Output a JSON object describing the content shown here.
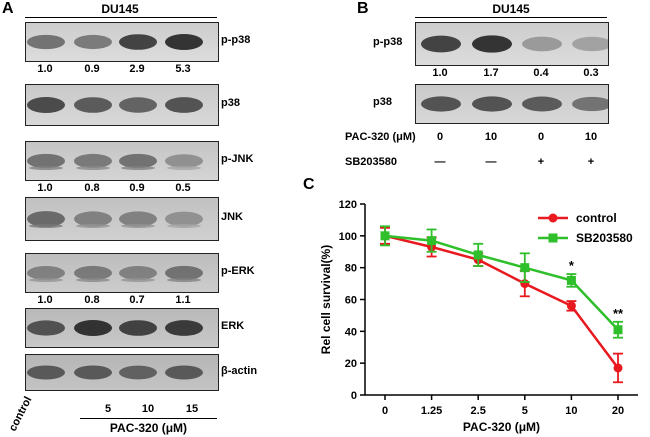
{
  "panel_a": {
    "letter": "A",
    "cell_line": "DU145",
    "blots": [
      {
        "label": "p-p38",
        "quant": [
          "1.0",
          "0.9",
          "2.9",
          "5.3"
        ],
        "band_intensity": [
          0.55,
          0.5,
          0.85,
          0.95
        ]
      },
      {
        "label": "p38",
        "quant": [],
        "band_intensity": [
          0.8,
          0.7,
          0.65,
          0.75
        ]
      },
      {
        "label": "p-JNK",
        "quant": [
          "1.0",
          "0.8",
          "0.9",
          "0.5"
        ],
        "band_intensity": [
          0.55,
          0.5,
          0.55,
          0.35
        ]
      },
      {
        "label": "JNK",
        "quant": [],
        "band_intensity": [
          0.6,
          0.45,
          0.45,
          0.35
        ]
      },
      {
        "label": "p-ERK",
        "quant": [
          "1.0",
          "0.8",
          "0.7",
          "1.1"
        ],
        "band_intensity": [
          0.45,
          0.5,
          0.45,
          0.55
        ]
      },
      {
        "label": "ERK",
        "quant": [],
        "band_intensity": [
          0.75,
          0.95,
          0.85,
          0.9
        ]
      },
      {
        "label": "β-actin",
        "quant": [],
        "band_intensity": [
          0.7,
          0.7,
          0.65,
          0.7
        ]
      }
    ],
    "lane_labels": [
      "control",
      "5",
      "10",
      "15"
    ],
    "treatment_label": "PAC-320 (μM)"
  },
  "panel_b": {
    "letter": "B",
    "cell_line": "DU145",
    "blots": [
      {
        "label": "p-p38",
        "quant": [
          "1.0",
          "1.7",
          "0.4",
          "0.3"
        ],
        "band_intensity": [
          0.85,
          0.95,
          0.3,
          0.25
        ]
      },
      {
        "label": "p38",
        "quant": [],
        "band_intensity": [
          0.75,
          0.75,
          0.7,
          0.55
        ]
      }
    ],
    "conditions": [
      {
        "label": "PAC-320 (μM)",
        "values": [
          "0",
          "10",
          "0",
          "10"
        ]
      },
      {
        "label": "SB203580",
        "values": [
          "—",
          "—",
          "+",
          "+"
        ]
      }
    ]
  },
  "panel_c": {
    "letter": "C",
    "chart_data": {
      "type": "line",
      "xlabel": "PAC-320 (μM)",
      "ylabel": "Rel cell survival(%)",
      "categories": [
        "0",
        "1.25",
        "2.5",
        "5",
        "10",
        "20"
      ],
      "ylim": [
        0,
        120
      ],
      "yticks": [
        "0",
        "20",
        "40",
        "60",
        "80",
        "100",
        "120"
      ],
      "grid": false,
      "legend_position": "top-right",
      "series": [
        {
          "name": "control",
          "color": "#e8191f",
          "marker": "circle",
          "values": [
            100,
            93,
            85,
            70,
            56,
            17
          ],
          "errors": [
            5,
            6,
            4,
            8,
            3,
            9
          ]
        },
        {
          "name": "SB203580",
          "color": "#2fbf2a",
          "marker": "square",
          "values": [
            100,
            97,
            88,
            80,
            72,
            41
          ],
          "errors": [
            6,
            7,
            7,
            9,
            4,
            5
          ]
        }
      ],
      "annotations": [
        {
          "category": "10",
          "text": "*"
        },
        {
          "category": "20",
          "text": "**"
        }
      ]
    }
  }
}
